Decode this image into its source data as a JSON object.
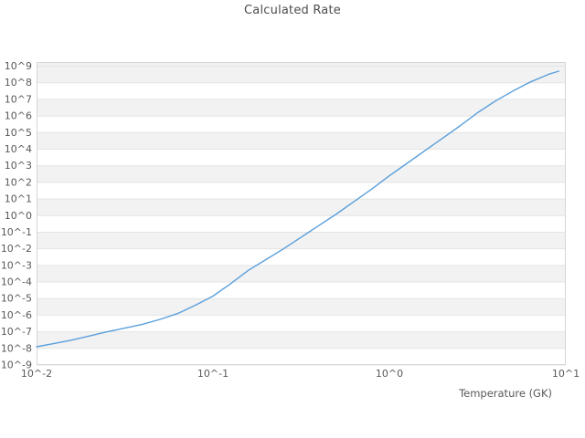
{
  "chart_data": {
    "type": "line",
    "title": "Calculated Rate",
    "xlabel": "Temperature (GK)",
    "ylabel": "",
    "x_scale": "log10",
    "y_scale": "log10",
    "x_range_log10": [
      -2,
      1
    ],
    "y_range_log10": [
      -9,
      9.25
    ],
    "grid": "horizontal-bands",
    "legend": "none",
    "x_ticks": [
      {
        "log10": -2,
        "label": "10^-2"
      },
      {
        "log10": -1,
        "label": "10^-1"
      },
      {
        "log10": 0,
        "label": "10^0"
      },
      {
        "log10": 1,
        "label": "10^1"
      }
    ],
    "y_ticks": [
      {
        "log10": 9,
        "label": "10^9"
      },
      {
        "log10": 8,
        "label": "10^8"
      },
      {
        "log10": 7,
        "label": "10^7"
      },
      {
        "log10": 6,
        "label": "10^6"
      },
      {
        "log10": 5,
        "label": "10^5"
      },
      {
        "log10": 4,
        "label": "10^4"
      },
      {
        "log10": 3,
        "label": "10^3"
      },
      {
        "log10": 2,
        "label": "10^2"
      },
      {
        "log10": 1,
        "label": "10^1"
      },
      {
        "log10": 0,
        "label": "10^0"
      },
      {
        "log10": -1,
        "label": "10^-1"
      },
      {
        "log10": -2,
        "label": "10^-2"
      },
      {
        "log10": -3,
        "label": "10^-3"
      },
      {
        "log10": -4,
        "label": "10^-4"
      },
      {
        "log10": -5,
        "label": "10^-5"
      },
      {
        "log10": -6,
        "label": "10^-6"
      },
      {
        "log10": -7,
        "label": "10^-7"
      },
      {
        "log10": -8,
        "label": "10^-8"
      },
      {
        "log10": -9,
        "label": "10^-9"
      }
    ],
    "series": [
      {
        "name": "calculated-rate",
        "color": "#5a9fdc",
        "line_width": 1.4,
        "points_log10": [
          [
            -2.0,
            -7.9
          ],
          [
            -1.9,
            -7.7
          ],
          [
            -1.8,
            -7.5
          ],
          [
            -1.7,
            -7.25
          ],
          [
            -1.6,
            -7.0
          ],
          [
            -1.5,
            -6.78
          ],
          [
            -1.4,
            -6.55
          ],
          [
            -1.3,
            -6.25
          ],
          [
            -1.2,
            -5.9
          ],
          [
            -1.1,
            -5.4
          ],
          [
            -1.0,
            -4.85
          ],
          [
            -0.9,
            -4.1
          ],
          [
            -0.8,
            -3.3
          ],
          [
            -0.7,
            -2.65
          ],
          [
            -0.6,
            -2.0
          ],
          [
            -0.5,
            -1.3
          ],
          [
            -0.4,
            -0.6
          ],
          [
            -0.3,
            0.1
          ],
          [
            -0.2,
            0.85
          ],
          [
            -0.1,
            1.6
          ],
          [
            0.0,
            2.4
          ],
          [
            0.1,
            3.15
          ],
          [
            0.2,
            3.9
          ],
          [
            0.3,
            4.65
          ],
          [
            0.4,
            5.4
          ],
          [
            0.5,
            6.2
          ],
          [
            0.6,
            6.9
          ],
          [
            0.7,
            7.5
          ],
          [
            0.8,
            8.05
          ],
          [
            0.9,
            8.5
          ],
          [
            0.96,
            8.7
          ]
        ]
      }
    ],
    "style": {
      "band_fill": "#f2f2f2",
      "grid_line": "#e4e4e4",
      "border": "#d6d6d6",
      "tick_text": "#595959",
      "title_text": "#4d4d4d",
      "plot_background": "#ffffff"
    }
  }
}
